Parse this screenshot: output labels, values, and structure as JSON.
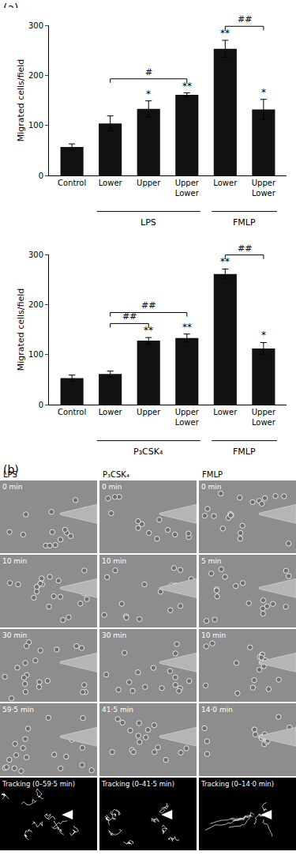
{
  "panel_labels": [
    "(a)",
    "(b)"
  ],
  "chart_data": [
    {
      "type": "bar",
      "y_label": "Migrated cells/field",
      "categories": [
        "Control",
        "Lower",
        "Upper",
        "Upper\nLower",
        "Lower",
        "Upper\nLower"
      ],
      "values": [
        57,
        104,
        133,
        161,
        253,
        132
      ],
      "errors": [
        6,
        15,
        16,
        4,
        17,
        20
      ],
      "significance": [
        null,
        null,
        "*",
        "**",
        "**",
        "*"
      ],
      "comparisons": [
        {
          "from": 1,
          "to": 3,
          "label": "#"
        },
        {
          "from": 4,
          "to": 5,
          "label": "##"
        }
      ],
      "groups": [
        {
          "label": "LPS",
          "start": 1,
          "end": 3
        },
        {
          "label": "FMLP",
          "start": 4,
          "end": 5
        }
      ],
      "color": "#111111",
      "ylim": [
        0,
        300
      ],
      "yticks": [
        0,
        100,
        200,
        300
      ],
      "grid": false
    },
    {
      "type": "bar",
      "y_label": "Migrated cells/field",
      "categories": [
        "Control",
        "Lower",
        "Upper",
        "Upper\nLower",
        "Lower",
        "Upper\nLower"
      ],
      "values": [
        53,
        61,
        128,
        133,
        261,
        112
      ],
      "errors": [
        6,
        6,
        6,
        8,
        10,
        12
      ],
      "significance": [
        null,
        null,
        "**",
        "**",
        "**",
        "*"
      ],
      "comparisons": [
        {
          "from": 1,
          "to": 2,
          "label": "##"
        },
        {
          "from": 1,
          "to": 3,
          "label": "##"
        },
        {
          "from": 4,
          "to": 5,
          "label": "##"
        }
      ],
      "groups": [
        {
          "label": "P₃CSK₄",
          "start": 1,
          "end": 3
        },
        {
          "label": "FMLP",
          "start": 4,
          "end": 5
        }
      ],
      "color": "#111111",
      "ylim": [
        0,
        300
      ],
      "yticks": [
        0,
        100,
        200,
        300
      ],
      "grid": false
    }
  ],
  "image_panel": {
    "columns": [
      {
        "title": "LPS",
        "frames": [
          "0 min",
          "10 min",
          "30 min",
          "59·5 min"
        ],
        "tracking": "Tracking (0–59·5 min)"
      },
      {
        "title": "P₃CSK₄",
        "frames": [
          "0 min",
          "10 min",
          "30 min",
          "41·5 min"
        ],
        "tracking": "Tracking (0–41·5 min)"
      },
      {
        "title": "FMLP",
        "frames": [
          "0 min",
          "5 min",
          "10 min",
          "14·0 min"
        ],
        "tracking": "Tracking (0–14·0 min)"
      }
    ]
  }
}
